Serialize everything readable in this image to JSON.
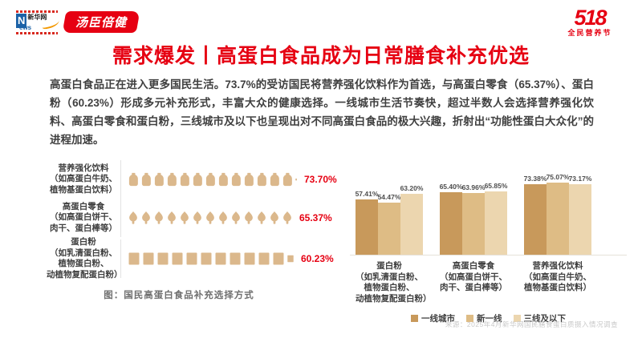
{
  "header": {
    "xinhua_logo": {
      "initial": "N",
      "cn": "新华网",
      "suffix": "ews"
    },
    "byhealth_logo": "汤臣倍健",
    "festival_logo": {
      "number": "518",
      "text": "全民营养节"
    }
  },
  "title": "需求爆发丨高蛋白食品成为日常膳食补充优选",
  "paragraph": "高蛋白食品正在进入更多国民生活。73.7%的受访国民将营养强化饮料作为首选，与高蛋白零食（65.37%）、蛋白粉（60.23%）形成多元补充形式，丰富大众的健康选择。一线城市生活节奏快，超过半数人会选择营养强化饮料、高蛋白零食和蛋白粉，三线城市及以下也呈现出对不同高蛋白食品的极大兴趣，折射出“功能性蛋白大众化”的进程加速。",
  "chart_data": [
    {
      "type": "pictogram-bar",
      "title": "图：国民高蛋白食品补充选择方式",
      "icon_color": "#dbb88c",
      "value_color": "#e60012",
      "rows": [
        {
          "category_lines": [
            "营养强化饮料",
            "（如高蛋白牛奶、",
            "植物基蛋白饮料）"
          ],
          "value": 73.7,
          "label": "73.70%",
          "icon": "bottle",
          "icon_count": 13,
          "icon_partial": 0.18
        },
        {
          "category_lines": [
            "高蛋白零食",
            "（如高蛋白饼干、",
            "肉干、蛋白棒等）"
          ],
          "value": 65.37,
          "label": "65.37%",
          "icon": "snack",
          "icon_count": 13,
          "icon_partial": 0
        },
        {
          "category_lines": [
            "蛋白粉",
            "（如乳清蛋白粉、",
            "植物蛋白粉、",
            "动植物复配蛋白粉）"
          ],
          "value": 60.23,
          "label": "60.23%",
          "icon": "square",
          "icon_count": 11,
          "icon_partial": 0.6
        }
      ]
    },
    {
      "type": "bar",
      "categories": [
        "蛋白粉（如乳清蛋白粉、植物蛋白粉、动植物复配蛋白粉）",
        "高蛋白零食（如高蛋白饼干、肉干、蛋白棒等）",
        "营养强化饮料（如高蛋白牛奶、植物基蛋白饮料）"
      ],
      "categories_lines": [
        [
          "蛋白粉",
          "（如乳清蛋白粉、",
          "植物蛋白粉、",
          "动植物复配蛋白粉）"
        ],
        [
          "高蛋白零食",
          "（如高蛋白饼干、",
          "肉干、蛋白棒等）"
        ],
        [
          "营养强化饮料",
          "（如高蛋白牛奶、",
          "植物基蛋白饮料）"
        ]
      ],
      "series": [
        {
          "name": "一线城市",
          "color": "#c8995b",
          "values": [
            57.41,
            65.4,
            73.38
          ],
          "labels": [
            "57.41%",
            "65.40%",
            "73.38%"
          ]
        },
        {
          "name": "新一线",
          "color": "#debc85",
          "values": [
            54.47,
            63.96,
            75.07
          ],
          "labels": [
            "54.47%",
            "63.96%",
            "75.07%"
          ]
        },
        {
          "name": "三线及以下",
          "color": "#ecd6af",
          "values": [
            63.2,
            65.85,
            73.17
          ],
          "labels": [
            "63.20%",
            "65.85%",
            "73.17%"
          ]
        }
      ],
      "ylim": [
        0,
        80
      ],
      "legend_position": "bottom"
    }
  ],
  "footer": {
    "source": "来源：2025年4月新华网国民膳食蛋白质摄入情况调查"
  }
}
